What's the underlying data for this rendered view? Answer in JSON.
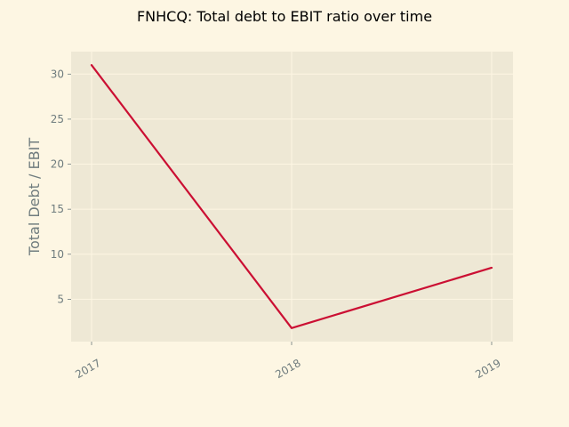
{
  "chart_data": {
    "type": "line",
    "title": "FNHCQ: Total debt to EBIT ratio over time",
    "xlabel": "",
    "ylabel": "Total Debt / EBIT",
    "x": [
      "2017",
      "2018",
      "2019"
    ],
    "series": [
      {
        "values": [
          31.0,
          1.8,
          8.5
        ]
      }
    ],
    "ylim": [
      0.3,
      32.5
    ],
    "yticks": [
      5,
      10,
      15,
      20,
      25,
      30
    ],
    "grid": true,
    "colors": {
      "background": "#fdf6e3",
      "plot_background": "#eee8d5",
      "grid": "#fdf6e3",
      "line": "#cb0f33",
      "tick_text": "#6f7c7e",
      "title_text": "#000000"
    }
  }
}
